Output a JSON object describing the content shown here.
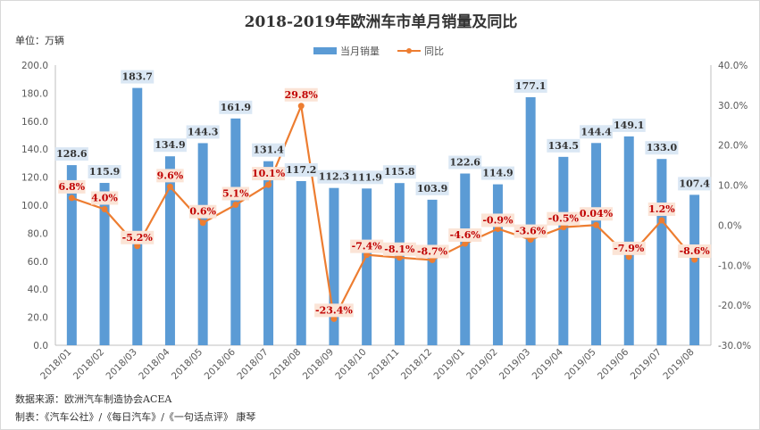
{
  "title": "2018-2019年欧洲车市单月销量及同比",
  "unit_label": "单位：万辆",
  "footnotes": {
    "source": "数据来源：欧洲汽车制造协会ACEA",
    "author": "制表：《汽车公社》/《每日汽车》/《一句话点评》 康琴"
  },
  "colors": {
    "bars": "#5b9bd5",
    "line": "#ed7d31",
    "bar_label_bg": "#dae7f4",
    "pct_label_bg": "#fbe4d6",
    "pct_text": "#c00000"
  },
  "chart_data": {
    "type": "bar",
    "categories": [
      "2018/01",
      "2018/02",
      "2018/03",
      "2018/04",
      "2018/05",
      "2018/06",
      "2018/07",
      "2018/08",
      "2018/09",
      "2018/10",
      "2018/11",
      "2018/12",
      "2019/01",
      "2019/02",
      "2019/03",
      "2019/04",
      "2019/05",
      "2019/06",
      "2019/07",
      "2019/08"
    ],
    "series": [
      {
        "name": "当月销量",
        "type": "bar",
        "axis": "left",
        "values": [
          128.6,
          115.9,
          183.7,
          134.9,
          144.3,
          161.9,
          131.4,
          117.2,
          112.3,
          111.9,
          115.8,
          103.9,
          122.6,
          114.9,
          177.1,
          134.5,
          144.4,
          149.1,
          133.0,
          107.4
        ],
        "labels": [
          "128.6",
          "115.9",
          "183.7",
          "134.9",
          "144.3",
          "161.9",
          "131.4",
          "117.2",
          "112.3",
          "111.9",
          "115.8",
          "103.9",
          "122.6",
          "114.9",
          "177.1",
          "134.5",
          "144.4",
          "149.1",
          "133.0",
          "107.4"
        ]
      },
      {
        "name": "同比",
        "type": "line",
        "axis": "right",
        "values": [
          6.8,
          4.0,
          -5.2,
          9.6,
          0.6,
          5.1,
          10.1,
          29.8,
          -23.4,
          -7.4,
          -8.1,
          -8.7,
          -4.6,
          -0.9,
          -3.6,
          -0.5,
          0.04,
          -7.9,
          1.2,
          -8.6
        ],
        "labels": [
          "6.8%",
          "4.0%",
          "-5.2%",
          "9.6%",
          "0.6%",
          "5.1%",
          "10.1%",
          "29.8%",
          "-23.4%",
          "-7.4%",
          "-8.1%",
          "-8.7%",
          "-4.6%",
          "-0.9%",
          "-3.6%",
          "-0.5%",
          "0.04%",
          "-7.9%",
          "1.2%",
          "-8.6%"
        ]
      }
    ],
    "y_left": {
      "min": 0,
      "max": 200,
      "ticks": [
        "0.0",
        "20.0",
        "40.0",
        "60.0",
        "80.0",
        "100.0",
        "120.0",
        "140.0",
        "160.0",
        "180.0",
        "200.0"
      ]
    },
    "y_right": {
      "min": -30,
      "max": 40,
      "ticks": [
        "-30.0%",
        "-20.0%",
        "-10.0%",
        "0.0%",
        "10.0%",
        "20.0%",
        "30.0%",
        "40.0%"
      ]
    },
    "grid": false,
    "legend_position": "top-center"
  }
}
